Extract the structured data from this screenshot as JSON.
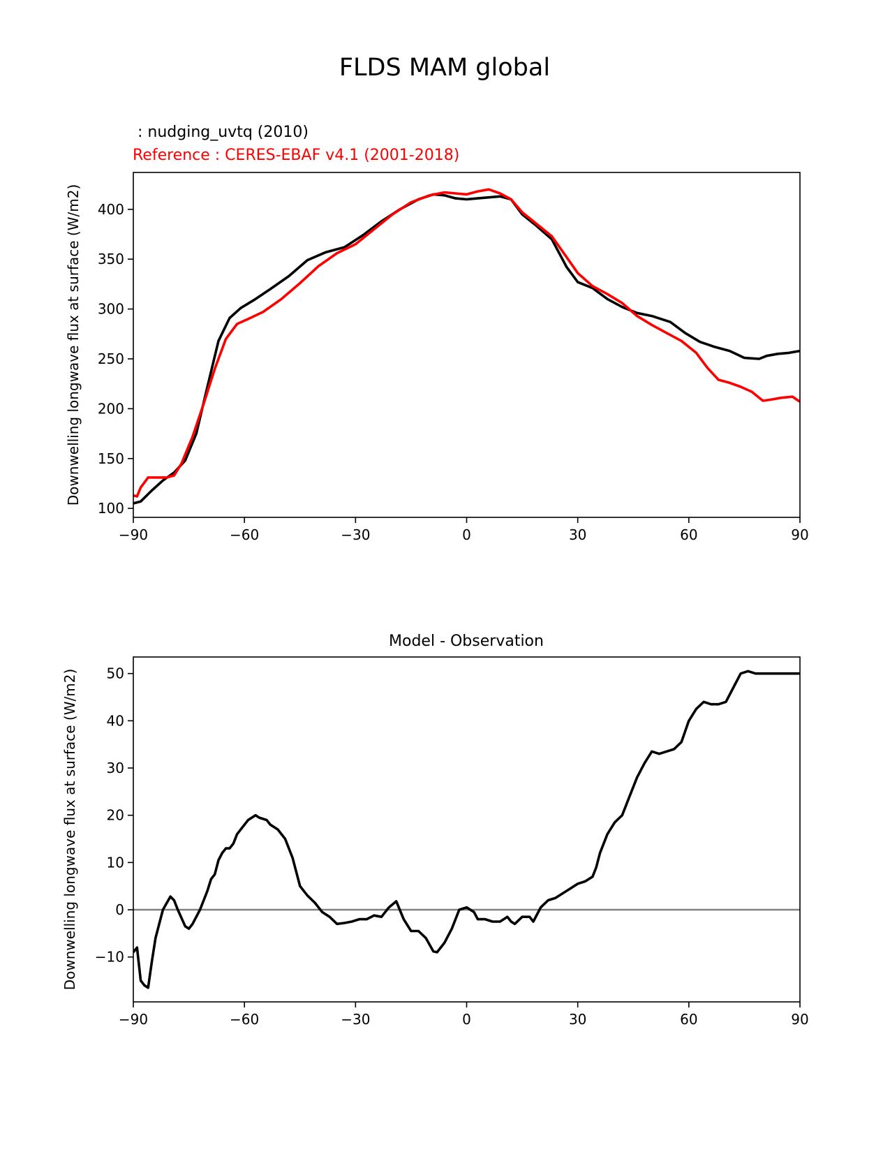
{
  "figure": {
    "title": "FLDS MAM global",
    "test_label": " : nudging_uvtq (2010)",
    "ref_label": "Reference : CERES-EBAF v4.1 (2001-2018)",
    "colors": {
      "test": "#000000",
      "reference": "#ff0000",
      "zero_line": "#808080"
    }
  },
  "chart_data": [
    {
      "type": "line",
      "title": "",
      "xlabel": "",
      "ylabel": "Downwelling longwave flux at surface (W/m2)",
      "xlim": [
        -90,
        90
      ],
      "ylim": [
        91,
        437
      ],
      "xticks": [
        -90,
        -60,
        -30,
        0,
        30,
        60,
        90
      ],
      "xtick_labels": [
        "−90",
        "−60",
        "−30",
        "0",
        "30",
        "60",
        "90"
      ],
      "yticks": [
        100,
        150,
        200,
        250,
        300,
        350,
        400
      ],
      "ytick_labels": [
        "100",
        "150",
        "200",
        "250",
        "300",
        "350",
        "400"
      ],
      "grid": false,
      "series": [
        {
          "color": "#000000",
          "x": [
            -90,
            -88,
            -85,
            -82,
            -79,
            -76,
            -73,
            -70,
            -67,
            -64,
            -61,
            -57,
            -53,
            -48,
            -43,
            -38,
            -33,
            -28,
            -23,
            -18,
            -13,
            -9,
            -6,
            -3,
            0,
            3,
            6,
            9,
            12,
            15,
            19,
            23,
            27,
            30,
            34,
            38,
            42,
            46,
            50,
            55,
            59,
            63,
            67,
            71,
            75,
            79,
            81,
            84,
            87,
            90
          ],
          "values": [
            105,
            107,
            118,
            128,
            136,
            148,
            175,
            222,
            268,
            291,
            301,
            310,
            320,
            333,
            349,
            357,
            362,
            374,
            388,
            400,
            410,
            415,
            414,
            411,
            410,
            411,
            412,
            413,
            410,
            395,
            383,
            370,
            342,
            327,
            321,
            310,
            302,
            296,
            293,
            287,
            276,
            267,
            262,
            258,
            251,
            250,
            253,
            255,
            256,
            258
          ]
        },
        {
          "color": "#ff0000",
          "x": [
            -90,
            -89,
            -88,
            -86,
            -84,
            -81,
            -79,
            -77,
            -74,
            -71,
            -68,
            -65,
            -62,
            -59,
            -55,
            -50,
            -45,
            -40,
            -35,
            -30,
            -25,
            -20,
            -15,
            -10,
            -6,
            -3,
            0,
            3,
            6,
            9,
            12,
            15,
            19,
            23,
            27,
            30,
            34,
            38,
            42,
            46,
            50,
            54,
            58,
            62,
            65,
            68,
            71,
            74,
            77,
            80,
            82,
            85,
            88,
            90
          ],
          "values": [
            113,
            112,
            121,
            131,
            131,
            131,
            133,
            145,
            172,
            205,
            240,
            270,
            285,
            290,
            297,
            310,
            326,
            343,
            356,
            365,
            380,
            395,
            407,
            414,
            417,
            416,
            415,
            418,
            420,
            416,
            410,
            397,
            385,
            373,
            352,
            336,
            323,
            315,
            306,
            293,
            284,
            276,
            268,
            256,
            241,
            229,
            226,
            222,
            217,
            208,
            209,
            211,
            212,
            207
          ]
        }
      ]
    },
    {
      "type": "line",
      "title": "Model - Observation",
      "xlabel": "",
      "ylabel": "Downwelling longwave flux at surface (W/m2)",
      "xlim": [
        -90,
        90
      ],
      "ylim": [
        -19.5,
        53.5
      ],
      "xticks": [
        -90,
        -60,
        -30,
        0,
        30,
        60,
        90
      ],
      "xtick_labels": [
        "−90",
        "−60",
        "−30",
        "0",
        "30",
        "60",
        "90"
      ],
      "yticks": [
        -10,
        0,
        10,
        20,
        30,
        40,
        50
      ],
      "ytick_labels": [
        "−10",
        "0",
        "10",
        "20",
        "30",
        "40",
        "50"
      ],
      "grid": false,
      "zero_line": true,
      "series": [
        {
          "color": "#000000",
          "x": [
            -90,
            -89,
            -88,
            -87,
            -86,
            -85,
            -84,
            -82,
            -80,
            -79,
            -78,
            -76,
            -75,
            -74,
            -72,
            -70,
            -69,
            -68,
            -67,
            -66,
            -65,
            -64,
            -63,
            -62,
            -60,
            -59,
            -57,
            -56,
            -54,
            -53,
            -51,
            -49,
            -47,
            -45,
            -43,
            -41,
            -39,
            -37,
            -35,
            -33,
            -31,
            -29,
            -27,
            -25,
            -23,
            -21,
            -19,
            -17,
            -15,
            -13,
            -11,
            -9,
            -8,
            -6,
            -4,
            -2,
            0,
            2,
            3,
            4,
            5,
            7,
            9,
            10,
            11,
            12,
            13,
            15,
            17,
            18,
            20,
            22,
            24,
            26,
            28,
            30,
            32,
            34,
            35,
            36,
            38,
            40,
            42,
            44,
            46,
            48,
            50,
            52,
            54,
            56,
            58,
            60,
            62,
            64,
            66,
            68,
            70,
            72,
            74,
            76,
            78,
            80,
            82,
            84,
            86,
            87,
            88,
            89,
            90
          ],
          "values": [
            -9,
            -8,
            -15,
            -16,
            -16.5,
            -11,
            -6,
            0,
            2.8,
            2,
            0,
            -3.5,
            -4,
            -3,
            0,
            4,
            6.5,
            7.5,
            10.5,
            12,
            13,
            13,
            14,
            16,
            18,
            19,
            20,
            19.5,
            19,
            18,
            17,
            15,
            11,
            5,
            3,
            1.5,
            -0.5,
            -1.5,
            -3,
            -2.8,
            -2.5,
            -2,
            -2,
            -1.2,
            -1.5,
            0.5,
            1.8,
            -2,
            -4.5,
            -4.5,
            -6,
            -8.8,
            -9,
            -7,
            -4,
            0,
            0.5,
            -0.5,
            -2,
            -2,
            -2,
            -2.5,
            -2.5,
            -2,
            -1.5,
            -2.5,
            -3,
            -1.5,
            -1.5,
            -2.5,
            0.5,
            2,
            2.5,
            3.5,
            4.5,
            5.5,
            6,
            7,
            9,
            12,
            16,
            18.5,
            20,
            24,
            28,
            31,
            33.5,
            33,
            33.5,
            34,
            35.5,
            40,
            42.5,
            44,
            43.5,
            43.5,
            44,
            47,
            50,
            50.5,
            50,
            50,
            50,
            50,
            50,
            50,
            50,
            50,
            50
          ]
        }
      ]
    }
  ]
}
